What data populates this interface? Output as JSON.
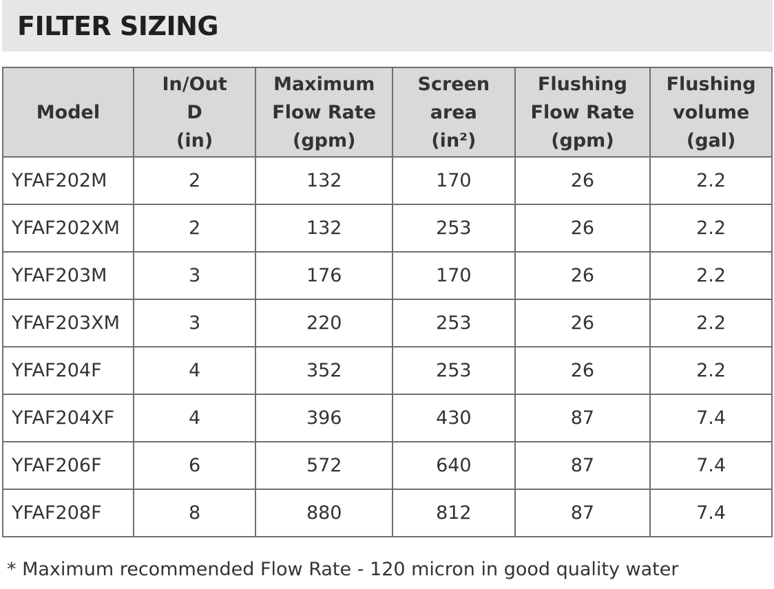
{
  "title": "FILTER SIZING",
  "table": {
    "header": [
      [
        "Model"
      ],
      [
        "In/Out",
        "D",
        "(in)"
      ],
      [
        "Maximum",
        "Flow Rate",
        "(gpm)"
      ],
      [
        "Screen",
        "area",
        "(in²)"
      ],
      [
        "Flushing",
        "Flow Rate",
        "(gpm)"
      ],
      [
        "Flushing",
        "volume",
        "(gal)"
      ]
    ],
    "rows": [
      [
        "YFAF202M",
        2,
        132,
        170,
        26,
        2.2
      ],
      [
        "YFAF202XM",
        2,
        132,
        253,
        26,
        2.2
      ],
      [
        "YFAF203M",
        3,
        176,
        170,
        26,
        2.2
      ],
      [
        "YFAF203XM",
        3,
        220,
        253,
        26,
        2.2
      ],
      [
        "YFAF204F",
        4,
        352,
        253,
        26,
        2.2
      ],
      [
        "YFAF204XF",
        4,
        396,
        430,
        87,
        7.4
      ],
      [
        "YFAF206F",
        6,
        572,
        640,
        87,
        7.4
      ],
      [
        "YFAF208F",
        8,
        880,
        812,
        87,
        7.4
      ]
    ]
  },
  "footnote": "* Maximum recommended Flow Rate - 120 micron in good quality water"
}
